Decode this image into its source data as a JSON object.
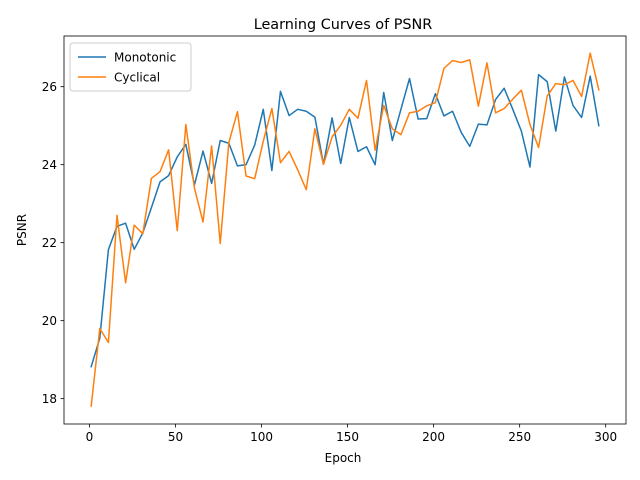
{
  "chart_data": {
    "type": "line",
    "title": "Learning Curves of PSNR",
    "xlabel": "Epoch",
    "ylabel": "PSNR",
    "xlim": [
      -14.8,
      311.8
    ],
    "ylim": [
      17.35,
      27.3
    ],
    "xticks": [
      0,
      50,
      100,
      150,
      200,
      250,
      300
    ],
    "yticks": [
      18,
      20,
      22,
      24,
      26
    ],
    "grid": false,
    "legend_position": "upper-left",
    "x": [
      1,
      6,
      11,
      16,
      21,
      26,
      31,
      36,
      41,
      46,
      51,
      56,
      61,
      66,
      71,
      76,
      81,
      86,
      91,
      96,
      101,
      106,
      111,
      116,
      121,
      126,
      131,
      136,
      141,
      146,
      151,
      156,
      161,
      166,
      171,
      176,
      181,
      186,
      191,
      196,
      201,
      206,
      211,
      216,
      221,
      226,
      231,
      236,
      241,
      246,
      251,
      256,
      261,
      266,
      271,
      276,
      281,
      286,
      291,
      296
    ],
    "series": [
      {
        "name": "Monotonic",
        "color": "#1f77b4",
        "values": [
          18.82,
          19.55,
          21.82,
          22.42,
          22.5,
          21.83,
          22.25,
          22.9,
          23.56,
          23.72,
          24.2,
          24.52,
          23.48,
          24.35,
          23.52,
          24.62,
          24.55,
          23.97,
          24.0,
          24.5,
          25.42,
          23.85,
          25.88,
          25.26,
          25.42,
          25.37,
          25.22,
          24.01,
          25.2,
          24.03,
          25.21,
          24.34,
          24.46,
          24.0,
          25.85,
          24.62,
          25.42,
          26.21,
          25.17,
          25.18,
          25.82,
          25.25,
          25.37,
          24.83,
          24.47,
          25.04,
          25.02,
          25.67,
          25.96,
          25.42,
          24.86,
          23.94,
          26.31,
          26.13,
          24.86,
          26.25,
          25.52,
          25.21,
          26.27,
          25.0
        ]
      },
      {
        "name": "Cyclical",
        "color": "#ff7f0e",
        "values": [
          17.81,
          19.8,
          19.44,
          22.7,
          20.97,
          22.45,
          22.23,
          23.65,
          23.82,
          24.38,
          22.31,
          25.03,
          23.4,
          22.53,
          24.48,
          21.98,
          24.57,
          25.36,
          23.71,
          23.64,
          24.6,
          25.44,
          24.05,
          24.34,
          23.87,
          23.36,
          24.92,
          24.01,
          24.71,
          25.01,
          25.42,
          25.19,
          26.16,
          24.37,
          25.52,
          24.92,
          24.77,
          25.33,
          25.37,
          25.51,
          25.59,
          26.47,
          26.67,
          26.62,
          26.69,
          25.5,
          26.61,
          25.33,
          25.44,
          25.68,
          25.91,
          25.03,
          24.44,
          25.76,
          26.08,
          26.05,
          26.16,
          25.75,
          26.86,
          25.92
        ]
      }
    ]
  }
}
